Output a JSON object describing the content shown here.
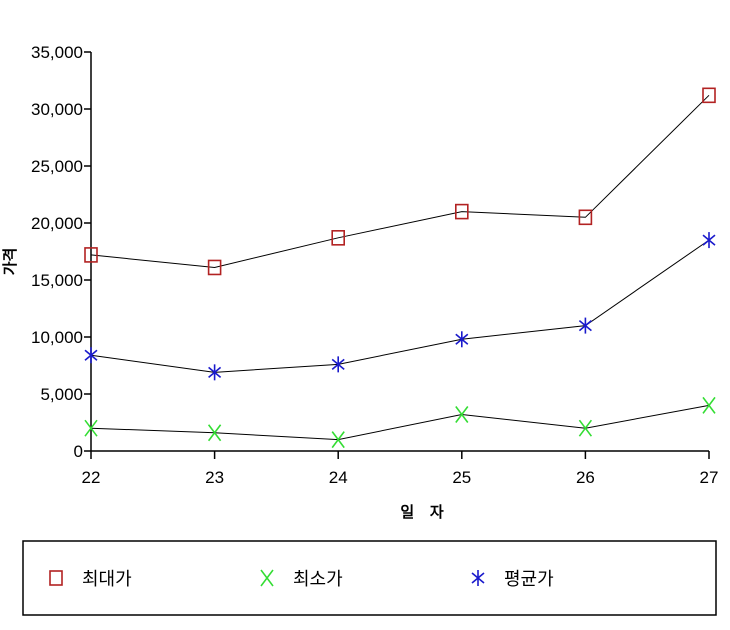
{
  "chart_data": {
    "type": "line",
    "title": "",
    "xlabel": "일 자",
    "ylabel": "가격",
    "x": [
      22,
      23,
      24,
      25,
      26,
      27
    ],
    "xlim": [
      22,
      27
    ],
    "ylim": [
      0,
      35000
    ],
    "yticks": [
      0,
      5000,
      10000,
      15000,
      20000,
      25000,
      30000,
      35000
    ],
    "ytick_labels": [
      "0",
      "5,000",
      "10,000",
      "15,000",
      "20,000",
      "25,000",
      "30,000",
      "35,000"
    ],
    "xtick_labels": [
      "22",
      "23",
      "24",
      "25",
      "26",
      "27"
    ],
    "grid": false,
    "legend_position": "bottom",
    "series": [
      {
        "name": "최대가",
        "values": [
          17200,
          16100,
          18700,
          21000,
          20500,
          31200
        ],
        "marker": "square",
        "color": "#b22222"
      },
      {
        "name": "최소가",
        "values": [
          2000,
          1600,
          1000,
          3200,
          2000,
          4000
        ],
        "marker": "x",
        "color": "#33dd33"
      },
      {
        "name": "평균가",
        "values": [
          8400,
          6900,
          7600,
          9800,
          11000,
          18500
        ],
        "marker": "asterisk",
        "color": "#1a1acc"
      }
    ]
  }
}
